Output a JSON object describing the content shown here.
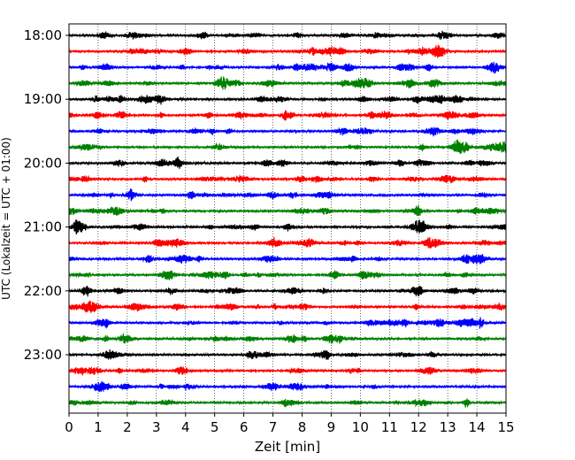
{
  "chart_data": {
    "type": "line",
    "title": "",
    "xlabel": "Zeit  [min]",
    "ylabel": "UTC (Lokalzeit = UTC + 01:00)",
    "xlim": [
      0,
      15
    ],
    "x_ticks": [
      "0",
      "1",
      "2",
      "3",
      "4",
      "5",
      "6",
      "7",
      "8",
      "9",
      "10",
      "11",
      "12",
      "13",
      "14",
      "15"
    ],
    "y_ticks": [
      "18:00",
      "19:00",
      "20:00",
      "21:00",
      "22:00",
      "23:00"
    ],
    "grid": "vertical dotted",
    "trace_colors": [
      "#000000",
      "#ff0000",
      "#0000ff",
      "#008000"
    ],
    "series": [
      {
        "start": "18:00"
      },
      {
        "start": "18:15"
      },
      {
        "start": "18:30"
      },
      {
        "start": "18:45"
      },
      {
        "start": "19:00"
      },
      {
        "start": "19:15"
      },
      {
        "start": "19:30"
      },
      {
        "start": "19:45"
      },
      {
        "start": "20:00"
      },
      {
        "start": "20:15"
      },
      {
        "start": "20:30"
      },
      {
        "start": "20:45"
      },
      {
        "start": "21:00"
      },
      {
        "start": "21:15"
      },
      {
        "start": "21:30"
      },
      {
        "start": "21:45"
      },
      {
        "start": "22:00"
      },
      {
        "start": "22:15"
      },
      {
        "start": "22:30"
      },
      {
        "start": "22:45"
      },
      {
        "start": "23:00"
      },
      {
        "start": "23:15"
      },
      {
        "start": "23:30"
      },
      {
        "start": "23:45"
      }
    ]
  }
}
